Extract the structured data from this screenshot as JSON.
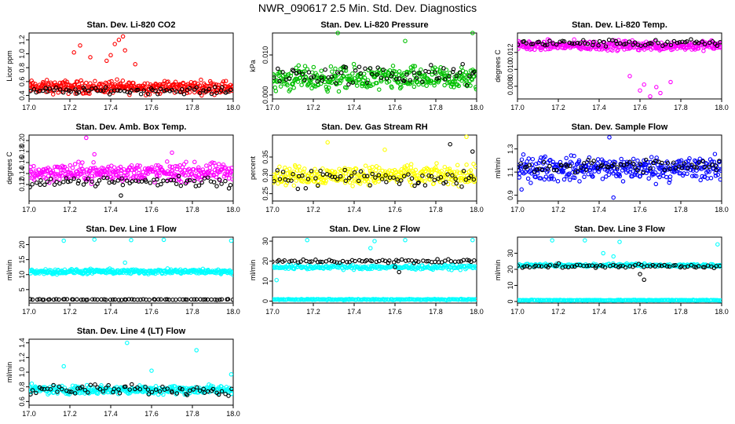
{
  "figure_title": "NWR_090617  2.5 Min. Std. Dev. Diagnostics",
  "chart_data": [
    {
      "type": "scatter",
      "title": "Stan. Dev. Li-820 CO2",
      "ylabel": "Licor ppm",
      "xlim": [
        17.0,
        18.0
      ],
      "ylim": [
        0.35,
        1.3
      ],
      "xticks": [
        "17.0",
        "17.2",
        "17.4",
        "17.6",
        "17.8",
        "18.0"
      ],
      "yticks": [
        "0.4",
        "0.6",
        "0.8",
        "1.0",
        "1.2"
      ],
      "series": [
        {
          "name": "primary",
          "color": "#ff0000",
          "base": 0.52,
          "spread": 0.08,
          "count": 340,
          "outliers": [
            [
              17.22,
              1.02
            ],
            [
              17.25,
              1.12
            ],
            [
              17.3,
              0.95
            ],
            [
              17.4,
              0.98
            ],
            [
              17.42,
              1.14
            ],
            [
              17.44,
              1.2
            ],
            [
              17.46,
              1.25
            ],
            [
              17.47,
              1.05
            ],
            [
              17.38,
              0.9
            ],
            [
              17.52,
              0.85
            ]
          ]
        },
        {
          "name": "secondary",
          "color": "#000000",
          "base": 0.47,
          "spread": 0.04,
          "count": 70,
          "outliers": []
        }
      ]
    },
    {
      "type": "scatter",
      "title": "Stan. Dev. Li-820 Pressure",
      "ylabel": "kPa",
      "xlim": [
        17.0,
        18.0
      ],
      "ylim": [
        -0.001,
        0.0155
      ],
      "xticks": [
        "17.0",
        "17.2",
        "17.4",
        "17.6",
        "17.8",
        "18.0"
      ],
      "yticks": [
        "0.000",
        "0.010"
      ],
      "series": [
        {
          "name": "primary",
          "color": "#00c000",
          "base": 0.004,
          "spread": 0.0025,
          "count": 340,
          "outliers": [
            [
              17.32,
              0.0155
            ],
            [
              17.65,
              0.0135
            ],
            [
              17.98,
              0.0155
            ]
          ]
        },
        {
          "name": "secondary",
          "color": "#000000",
          "base": 0.005,
          "spread": 0.0022,
          "count": 70,
          "outliers": []
        }
      ]
    },
    {
      "type": "scatter",
      "title": "Stan. Dev. Li-820 Temp.",
      "ylabel": "degrees C",
      "xlim": [
        17.0,
        18.0
      ],
      "ylim": [
        0.0065,
        0.0143
      ],
      "xticks": [
        "17.0",
        "17.2",
        "17.4",
        "17.6",
        "17.8",
        "18.0"
      ],
      "yticks": [
        "0.008",
        "0.010",
        "0.012"
      ],
      "series": [
        {
          "name": "primary",
          "color": "#ff00ff",
          "base": 0.0128,
          "spread": 0.0005,
          "count": 340,
          "outliers": [
            [
              17.6,
              0.0075
            ],
            [
              17.65,
              0.0068
            ],
            [
              17.7,
              0.0072
            ],
            [
              17.62,
              0.0082
            ],
            [
              17.68,
              0.0079
            ],
            [
              17.75,
              0.0085
            ],
            [
              17.55,
              0.0092
            ]
          ]
        },
        {
          "name": "secondary",
          "color": "#000000",
          "base": 0.0131,
          "spread": 0.00035,
          "count": 70,
          "outliers": []
        }
      ]
    },
    {
      "type": "scatter",
      "title": "Stan. Dev. Amb. Box Temp.",
      "ylabel": "degrees C",
      "xlim": [
        17.0,
        18.0
      ],
      "ylim": [
        0.09,
        0.21
      ],
      "xticks": [
        "17.0",
        "17.2",
        "17.4",
        "17.6",
        "17.8",
        "18.0"
      ],
      "yticks": [
        "0.12",
        "0.14",
        "0.16",
        "0.18",
        "0.20"
      ],
      "series": [
        {
          "name": "primary",
          "color": "#ff00ff",
          "base": 0.142,
          "spread": 0.014,
          "count": 340,
          "outliers": [
            [
              17.28,
              0.205
            ],
            [
              17.32,
              0.175
            ],
            [
              17.7,
              0.178
            ]
          ]
        },
        {
          "name": "secondary",
          "color": "#000000",
          "base": 0.125,
          "spread": 0.008,
          "count": 70,
          "outliers": [
            [
              17.45,
              0.1
            ]
          ]
        }
      ]
    },
    {
      "type": "scatter",
      "title": "Stan. Dev. Gas Stream RH",
      "ylabel": "percent",
      "xlim": [
        17.0,
        18.0
      ],
      "ylim": [
        0.23,
        0.41
      ],
      "xticks": [
        "17.0",
        "17.2",
        "17.4",
        "17.6",
        "17.8",
        "18.0"
      ],
      "yticks": [
        "0.25",
        "0.30",
        "0.35"
      ],
      "series": [
        {
          "name": "primary",
          "color": "#ffff00",
          "base": 0.3,
          "spread": 0.022,
          "count": 340,
          "outliers": [
            [
              17.27,
              0.39
            ],
            [
              17.95,
              0.405
            ],
            [
              17.55,
              0.37
            ]
          ]
        },
        {
          "name": "secondary",
          "color": "#000000",
          "base": 0.29,
          "spread": 0.025,
          "count": 70,
          "outliers": [
            [
              17.87,
              0.385
            ],
            [
              17.98,
              0.365
            ]
          ]
        }
      ]
    },
    {
      "type": "scatter",
      "title": "Stan. Dev. Sample Flow",
      "ylabel": "ml/min",
      "xlim": [
        17.0,
        18.0
      ],
      "ylim": [
        0.85,
        1.42
      ],
      "xticks": [
        "17.0",
        "17.2",
        "17.4",
        "17.6",
        "17.8",
        "18.0"
      ],
      "yticks": [
        "0.9",
        "1.1",
        "1.3"
      ],
      "series": [
        {
          "name": "primary",
          "color": "#0000ff",
          "base": 1.13,
          "spread": 0.09,
          "count": 340,
          "outliers": [
            [
              17.45,
              1.4
            ],
            [
              17.02,
              0.95
            ],
            [
              17.47,
              0.88
            ]
          ]
        },
        {
          "name": "secondary",
          "color": "#000000",
          "base": 1.15,
          "spread": 0.05,
          "count": 70,
          "outliers": []
        }
      ]
    },
    {
      "type": "scatter",
      "title": "Stan. Dev. Line 1 Flow",
      "ylabel": "ml/min",
      "xlim": [
        17.0,
        18.0
      ],
      "ylim": [
        0.5,
        22.5
      ],
      "xticks": [
        "17.0",
        "17.2",
        "17.4",
        "17.6",
        "17.8",
        "18.0"
      ],
      "yticks": [
        "5",
        "10",
        "15",
        "20"
      ],
      "series": [
        {
          "name": "primary",
          "color": "#00ffff",
          "base": 11.0,
          "spread": 0.7,
          "count": 340,
          "outliers": [
            [
              17.17,
              21.3
            ],
            [
              17.32,
              21.7
            ],
            [
              17.5,
              21.5
            ],
            [
              17.66,
              21.6
            ],
            [
              17.99,
              21.3
            ],
            [
              17.47,
              14.0
            ]
          ]
        },
        {
          "name": "secondary",
          "color": "#000000",
          "base": 1.7,
          "spread": 0.1,
          "count": 70,
          "outliers": []
        }
      ]
    },
    {
      "type": "scatter",
      "title": "Stan. Dev. Line 2 Flow",
      "ylabel": "ml/min",
      "xlim": [
        17.0,
        18.0
      ],
      "ylim": [
        -1,
        32
      ],
      "xticks": [
        "17.0",
        "17.2",
        "17.4",
        "17.6",
        "17.8",
        "18.0"
      ],
      "yticks": [
        "0",
        "10",
        "20",
        "30"
      ],
      "series": [
        {
          "name": "primary",
          "color": "#00ffff",
          "base": 17.0,
          "spread": 1.0,
          "count": 220,
          "outliers": [
            [
              17.17,
              30.5
            ],
            [
              17.5,
              30.0
            ],
            [
              17.65,
              30.5
            ],
            [
              17.98,
              30.5
            ],
            [
              17.02,
              10.5
            ],
            [
              17.48,
              26.5
            ]
          ]
        },
        {
          "name": "baseline",
          "color": "#00ffff",
          "base": 0.8,
          "spread": 0.2,
          "count": 200,
          "outliers": []
        },
        {
          "name": "secondary",
          "color": "#000000",
          "base": 20.0,
          "spread": 0.8,
          "count": 70,
          "outliers": [
            [
              17.62,
              14.5
            ],
            [
              17.6,
              17.0
            ]
          ]
        }
      ]
    },
    {
      "type": "scatter",
      "title": "Stan. Dev. Line 3 Flow",
      "ylabel": "ml/min",
      "xlim": [
        17.0,
        18.0
      ],
      "ylim": [
        -1,
        40
      ],
      "xticks": [
        "17.0",
        "17.2",
        "17.4",
        "17.6",
        "17.8",
        "18.0"
      ],
      "yticks": [
        "0",
        "10",
        "20",
        "30"
      ],
      "series": [
        {
          "name": "primary",
          "color": "#00ffff",
          "base": 22.5,
          "spread": 0.8,
          "count": 220,
          "outliers": [
            [
              17.17,
              38
            ],
            [
              17.33,
              38
            ],
            [
              17.5,
              37
            ],
            [
              17.98,
              35.5
            ],
            [
              17.42,
              30
            ],
            [
              17.47,
              28
            ]
          ]
        },
        {
          "name": "baseline",
          "color": "#00ffff",
          "base": 0.8,
          "spread": 0.2,
          "count": 200,
          "outliers": []
        },
        {
          "name": "secondary",
          "color": "#000000",
          "base": 22.0,
          "spread": 1.0,
          "count": 70,
          "outliers": [
            [
              17.62,
              13.5
            ],
            [
              17.6,
              17.0
            ]
          ]
        }
      ]
    },
    {
      "type": "scatter",
      "title": "Stan. Dev. Line 4 (LT) Flow",
      "ylabel": "ml/min",
      "xlim": [
        17.0,
        18.0
      ],
      "ylim": [
        0.55,
        1.45
      ],
      "xticks": [
        "17.0",
        "17.2",
        "17.4",
        "17.6",
        "17.8",
        "18.0"
      ],
      "yticks": [
        "0.6",
        "0.8",
        "1.0",
        "1.2",
        "1.4"
      ],
      "series": [
        {
          "name": "primary",
          "color": "#00ffff",
          "base": 0.76,
          "spread": 0.05,
          "count": 340,
          "outliers": [
            [
              17.48,
              1.4
            ],
            [
              17.82,
              1.3
            ],
            [
              17.17,
              1.08
            ],
            [
              17.99,
              0.97
            ],
            [
              17.6,
              1.02
            ]
          ]
        },
        {
          "name": "secondary",
          "color": "#000000",
          "base": 0.76,
          "spread": 0.06,
          "count": 70,
          "outliers": []
        }
      ]
    }
  ]
}
